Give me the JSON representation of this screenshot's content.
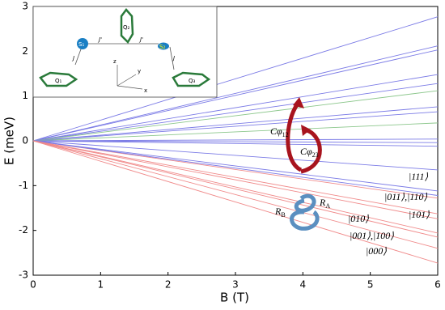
{
  "chart_data": {
    "type": "line",
    "xlabel": "B (T)",
    "ylabel": "E (meV)",
    "x": [
      0,
      6
    ],
    "xlim": [
      0,
      6
    ],
    "ylim": [
      -3,
      3
    ],
    "xticks": [
      0,
      1,
      2,
      3,
      4,
      5,
      6
    ],
    "yticks": [
      -3,
      -2,
      -1,
      0,
      1,
      2,
      3
    ],
    "series": [
      {
        "color": "#7b7be6",
        "values": [
          0,
          2.77
        ]
      },
      {
        "color": "#7b7be6",
        "values": [
          0,
          2.12
        ]
      },
      {
        "color": "#7b7be6",
        "values": [
          0,
          2.03
        ]
      },
      {
        "color": "#7b7be6",
        "values": [
          0,
          1.48
        ]
      },
      {
        "color": "#7b7be6",
        "values": [
          0,
          1.28
        ]
      },
      {
        "color": "#8cc78c",
        "values": [
          0,
          1.12
        ]
      },
      {
        "color": "#7b7be6",
        "values": [
          0,
          0.76
        ]
      },
      {
        "color": "#7b7be6",
        "values": [
          0,
          0.65
        ]
      },
      {
        "color": "#8cc78c",
        "values": [
          0,
          0.4
        ]
      },
      {
        "color": "#7b7be6",
        "values": [
          0,
          0.04
        ]
      },
      {
        "color": "#7b7be6",
        "values": [
          0,
          -0.04
        ]
      },
      {
        "color": "#7b7be6",
        "values": [
          0,
          -0.12
        ]
      },
      {
        "color": "#7b7be6",
        "values": [
          0,
          -0.65
        ]
      },
      {
        "color": "#7b7be6",
        "values": [
          0,
          -1.12
        ]
      },
      {
        "color": "#f08a8a",
        "values": [
          0,
          -1.28
        ]
      },
      {
        "color": "#7b7be6",
        "values": [
          0,
          -1.22
        ]
      },
      {
        "color": "#f08a8a",
        "values": [
          0,
          -1.63
        ]
      },
      {
        "color": "#f08a8a",
        "values": [
          0,
          -1.74
        ]
      },
      {
        "color": "#f08a8a",
        "values": [
          0,
          -2.06
        ]
      },
      {
        "color": "#f08a8a",
        "values": [
          0,
          -2.15
        ]
      },
      {
        "color": "#f08a8a",
        "values": [
          0,
          -2.4
        ]
      },
      {
        "color": "#f08a8a",
        "values": [
          0,
          -2.73
        ]
      }
    ],
    "annotations": [
      {
        "text": "|111⟩"
      },
      {
        "text": "|011⟩,|110⟩"
      },
      {
        "text": "|101⟩"
      },
      {
        "text": "|010⟩"
      },
      {
        "text": "|001⟩,|100⟩"
      },
      {
        "text": "|000⟩"
      },
      {
        "text": "Cφ",
        "sub": "12"
      },
      {
        "text": "Cφ",
        "sub": "23"
      },
      {
        "text": "R",
        "sub": "B"
      },
      {
        "text": "R",
        "sub": "A"
      }
    ]
  },
  "inset": {
    "nodes": [
      "Q₁",
      "Q₂",
      "Q₃",
      "S₁",
      "S₂"
    ],
    "couplings": [
      "J",
      "J'",
      "J'",
      "J"
    ],
    "axes": [
      "z",
      "y",
      "x"
    ]
  }
}
